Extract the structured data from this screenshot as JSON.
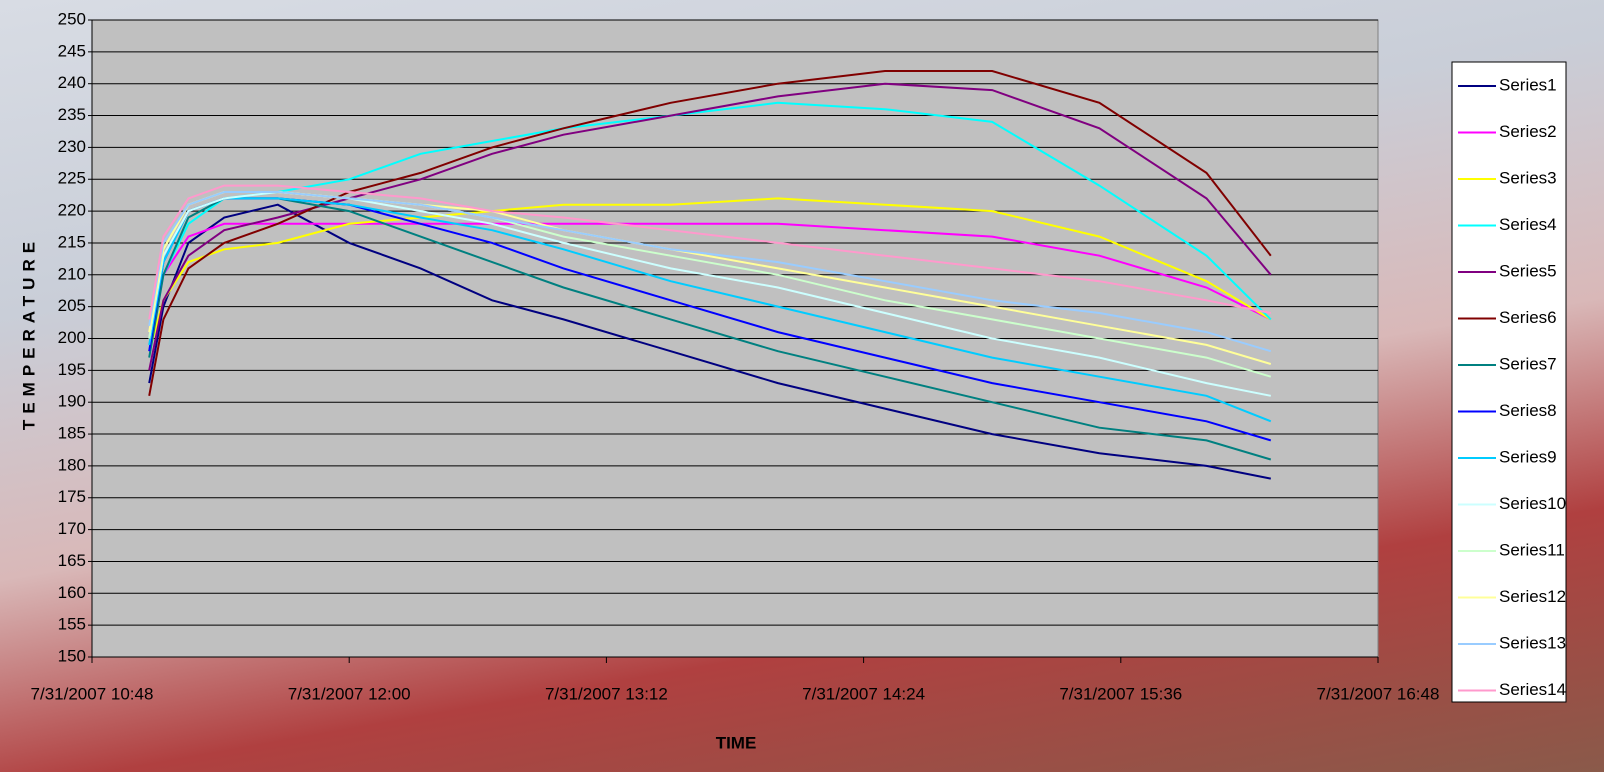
{
  "chart_data": {
    "type": "line",
    "x_label": "TIME",
    "y_label": "TEMPERATURE",
    "x": [
      "7/31/2007 11:04",
      "7/31/2007 11:08",
      "7/31/2007 11:15",
      "7/31/2007 11:25",
      "7/31/2007 11:40",
      "7/31/2007 12:00",
      "7/31/2007 12:20",
      "7/31/2007 12:40",
      "7/31/2007 13:00",
      "7/31/2007 13:30",
      "7/31/2007 14:00",
      "7/31/2007 14:30",
      "7/31/2007 15:00",
      "7/31/2007 15:30",
      "7/31/2007 16:00",
      "7/31/2007 16:18"
    ],
    "xlim": [
      "7/31/2007 10:48",
      "7/31/2007 16:48"
    ],
    "xticks": [
      "7/31/2007 10:48",
      "7/31/2007 12:00",
      "7/31/2007 13:12",
      "7/31/2007 14:24",
      "7/31/2007 15:36",
      "7/31/2007 16:48"
    ],
    "ylim": [
      150,
      250
    ],
    "yticks": [
      150,
      155,
      160,
      165,
      170,
      175,
      180,
      185,
      190,
      195,
      200,
      205,
      210,
      215,
      220,
      225,
      230,
      235,
      240,
      245,
      250
    ],
    "grid": true,
    "legend": "right",
    "series": [
      {
        "name": "Series1",
        "color": "#000080",
        "values": [
          193,
          205,
          215,
          219,
          221,
          215,
          211,
          206,
          203,
          198,
          193,
          189,
          185,
          182,
          180,
          178
        ]
      },
      {
        "name": "Series2",
        "color": "#ff00ff",
        "values": [
          198,
          210,
          216,
          218,
          218,
          218,
          218,
          218,
          218,
          218,
          218,
          217,
          216,
          213,
          208,
          203
        ]
      },
      {
        "name": "Series3",
        "color": "#ffff00",
        "values": [
          198,
          206,
          212,
          214,
          215,
          218,
          219,
          220,
          221,
          221,
          222,
          221,
          220,
          216,
          209,
          203
        ]
      },
      {
        "name": "Series4",
        "color": "#00ffff",
        "values": [
          200,
          210,
          218,
          222,
          223,
          225,
          229,
          231,
          233,
          235,
          237,
          236,
          234,
          224,
          213,
          203
        ]
      },
      {
        "name": "Series5",
        "color": "#800080",
        "values": [
          195,
          206,
          213,
          217,
          219,
          222,
          225,
          229,
          232,
          235,
          238,
          240,
          239,
          233,
          222,
          210
        ]
      },
      {
        "name": "Series6",
        "color": "#800000",
        "values": [
          191,
          203,
          211,
          215,
          218,
          223,
          226,
          230,
          233,
          237,
          240,
          242,
          242,
          237,
          226,
          213
        ]
      },
      {
        "name": "Series7",
        "color": "#008080",
        "values": [
          197,
          210,
          219,
          222,
          222,
          220,
          216,
          212,
          208,
          203,
          198,
          194,
          190,
          186,
          184,
          181
        ]
      },
      {
        "name": "Series8",
        "color": "#0000ff",
        "values": [
          198,
          212,
          220,
          222,
          222,
          221,
          218,
          215,
          211,
          206,
          201,
          197,
          193,
          190,
          187,
          184
        ]
      },
      {
        "name": "Series9",
        "color": "#00ccff",
        "values": [
          199,
          212,
          220,
          222,
          222,
          221,
          219,
          217,
          214,
          209,
          205,
          201,
          197,
          194,
          191,
          187
        ]
      },
      {
        "name": "Series10",
        "color": "#ccffff",
        "values": [
          200,
          213,
          220,
          222,
          223,
          222,
          220,
          218,
          215,
          211,
          208,
          204,
          200,
          197,
          193,
          191
        ]
      },
      {
        "name": "Series11",
        "color": "#ccffcc",
        "values": [
          200,
          214,
          221,
          223,
          223,
          222,
          221,
          219,
          216,
          213,
          210,
          206,
          203,
          200,
          197,
          194
        ]
      },
      {
        "name": "Series12",
        "color": "#ffff99",
        "values": [
          201,
          214,
          221,
          223,
          223,
          222,
          221,
          220,
          217,
          214,
          211,
          208,
          205,
          202,
          199,
          196
        ]
      },
      {
        "name": "Series13",
        "color": "#99ccff",
        "values": [
          202,
          215,
          221,
          223,
          223,
          222,
          221,
          219,
          217,
          214,
          212,
          209,
          206,
          204,
          201,
          198
        ]
      },
      {
        "name": "Series14",
        "color": "#ff99cc",
        "values": [
          203,
          216,
          222,
          224,
          224,
          223,
          222,
          220,
          219,
          217,
          215,
          213,
          211,
          209,
          206,
          204
        ]
      }
    ]
  }
}
